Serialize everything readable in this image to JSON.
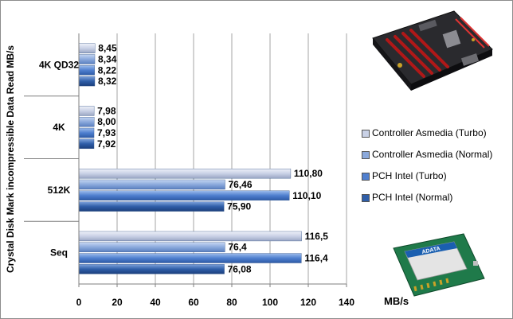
{
  "chart_data": {
    "type": "bar",
    "orientation": "horizontal",
    "ylabel": "Crystal Disk Mark incompressible Data Read MB/s",
    "xlabel": "MB/s",
    "xlim": [
      0,
      140
    ],
    "xticks": [
      0,
      20,
      40,
      60,
      80,
      100,
      120,
      140
    ],
    "grid": true,
    "legend_position": "right",
    "categories": [
      "4K QD32",
      "4K",
      "512K",
      "Seq"
    ],
    "series": [
      {
        "name": "Controller Asmedia (Turbo)",
        "color": "#c9d1e6",
        "values": [
          8.45,
          7.98,
          110.8,
          116.5
        ],
        "labels": [
          "8,45",
          "7,98",
          "110,80",
          "116,5"
        ]
      },
      {
        "name": "Controller Asmedia (Normal)",
        "color": "#8ba9dc",
        "values": [
          8.34,
          8.0,
          76.46,
          76.4
        ],
        "labels": [
          "8,34",
          "8,00",
          "76,46",
          "76,4"
        ]
      },
      {
        "name": "PCH Intel (Turbo)",
        "color": "#4f7fcf",
        "values": [
          8.22,
          7.93,
          110.1,
          116.4
        ],
        "labels": [
          "8,22",
          "7,93",
          "110,10",
          "116,4"
        ]
      },
      {
        "name": "PCH Intel (Normal)",
        "color": "#2f5ea8",
        "values": [
          8.32,
          7.92,
          75.9,
          76.08
        ],
        "labels": [
          "8,32",
          "7,92",
          "75,90",
          "76,08"
        ]
      }
    ]
  },
  "images": {
    "motherboard": "motherboard-photo",
    "ssd": "msata-ssd-photo",
    "ssd_brand": "ADATA"
  }
}
